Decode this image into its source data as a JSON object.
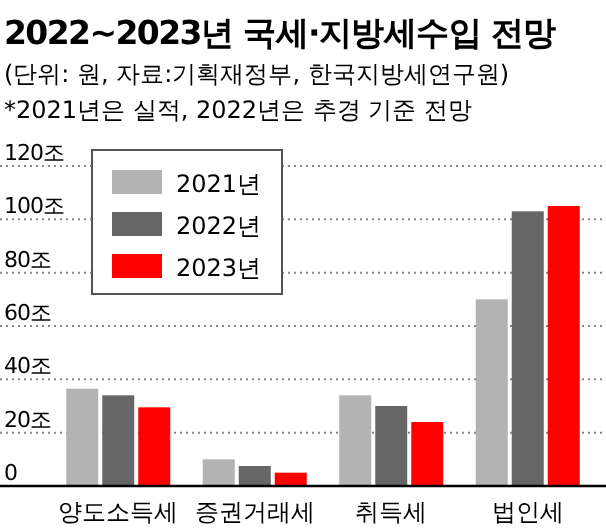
{
  "chart_data": {
    "type": "bar",
    "title": "2022~2023년 국세·지방세수입 전망",
    "subtitle": "(단위: 원, 자료:기획재정부, 한국지방세연구원)",
    "annotations": [
      "*2021년은 실적, 2022년은 추경 기준 전망"
    ],
    "categories": [
      "양도소득세",
      "증권거래세",
      "취득세",
      "법인세"
    ],
    "series": [
      {
        "name": "2021년",
        "color": "#b3b3b3",
        "values": [
          36.5,
          10,
          34,
          70
        ]
      },
      {
        "name": "2022년",
        "color": "#666666",
        "values": [
          34,
          7.5,
          30,
          103
        ]
      },
      {
        "name": "2023년",
        "color": "#ff0000",
        "values": [
          29.5,
          5,
          24,
          105
        ]
      }
    ],
    "ylim": [
      0,
      120
    ],
    "yticks": [
      0,
      {
        "value": 20,
        "label": "20조"
      },
      {
        "value": 40,
        "label": "40조"
      },
      {
        "value": 60,
        "label": "60조"
      },
      {
        "value": 80,
        "label": "80조"
      },
      {
        "value": 100,
        "label": "100조"
      },
      {
        "value": 120,
        "label": "120조"
      }
    ],
    "grid": "y",
    "legend": "top left"
  }
}
